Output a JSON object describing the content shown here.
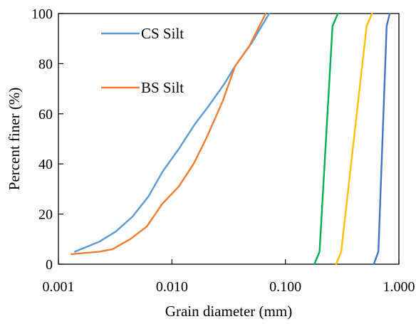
{
  "chart_data": {
    "type": "line",
    "title": "",
    "xlabel": "Grain diameter (mm)",
    "ylabel": "Percent finer (%)",
    "xscale": "log",
    "xlim": [
      0.001,
      1.0
    ],
    "ylim": [
      0,
      100
    ],
    "xticks": [
      0.001,
      0.01,
      0.1,
      1.0
    ],
    "xtick_labels": [
      "0.001",
      "0.010",
      "0.100",
      "1.000"
    ],
    "yticks": [
      0,
      20,
      40,
      60,
      80,
      100
    ],
    "ytick_labels": [
      "0",
      "20",
      "40",
      "60",
      "80",
      "100"
    ],
    "grid": false,
    "legend_position": "top-left, inside plot",
    "series": [
      {
        "name": "CS Silt",
        "color": "#5b9bd5",
        "points": [
          [
            0.0014,
            5
          ],
          [
            0.0023,
            9
          ],
          [
            0.0032,
            13
          ],
          [
            0.0045,
            19
          ],
          [
            0.0062,
            27
          ],
          [
            0.0083,
            37
          ],
          [
            0.0115,
            46
          ],
          [
            0.016,
            56
          ],
          [
            0.021,
            63
          ],
          [
            0.029,
            72
          ],
          [
            0.036,
            79
          ],
          [
            0.05,
            88
          ],
          [
            0.072,
            100
          ]
        ]
      },
      {
        "name": "BS Silt",
        "color": "#ed7d31",
        "points": [
          [
            0.0013,
            4
          ],
          [
            0.0023,
            5
          ],
          [
            0.003,
            6
          ],
          [
            0.0043,
            10
          ],
          [
            0.006,
            15
          ],
          [
            0.0082,
            24
          ],
          [
            0.0115,
            31
          ],
          [
            0.0155,
            40
          ],
          [
            0.02,
            50
          ],
          [
            0.028,
            65
          ],
          [
            0.036,
            79
          ],
          [
            0.048,
            87
          ],
          [
            0.067,
            100
          ]
        ]
      },
      {
        "color": "#00b050",
        "points": [
          [
            0.18,
            0
          ],
          [
            0.2,
            5
          ],
          [
            0.26,
            95
          ],
          [
            0.29,
            100
          ]
        ]
      },
      {
        "color": "#ffc000",
        "points": [
          [
            0.28,
            0
          ],
          [
            0.31,
            5
          ],
          [
            0.52,
            95
          ],
          [
            0.58,
            100
          ]
        ]
      },
      {
        "color": "#4472c4",
        "points": [
          [
            0.6,
            0
          ],
          [
            0.66,
            5
          ],
          [
            0.78,
            95
          ],
          [
            0.83,
            100
          ]
        ]
      }
    ]
  }
}
